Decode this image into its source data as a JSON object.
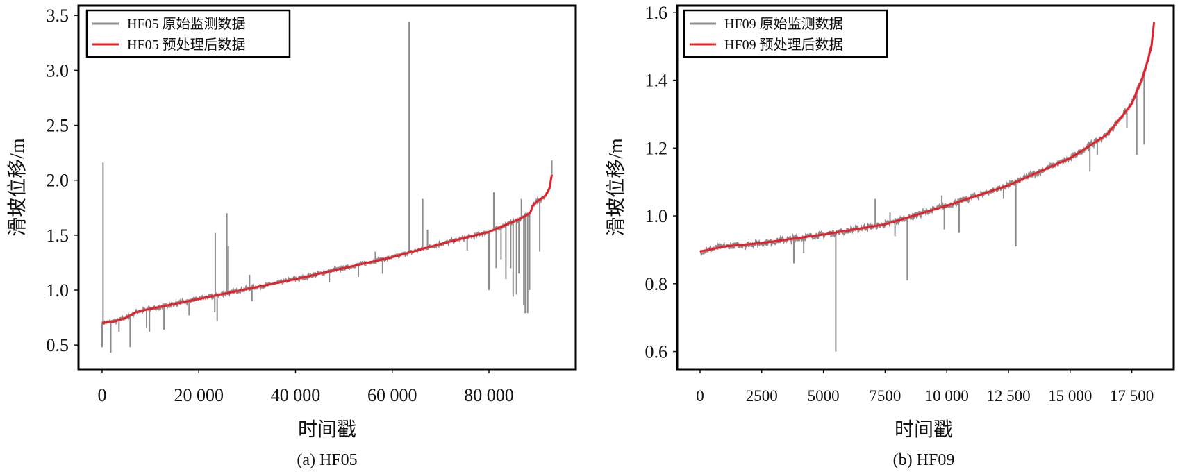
{
  "chart_data": [
    {
      "type": "line",
      "caption": "(a) HF05",
      "xlabel": "时间戳",
      "ylabel": "滑坡位移/m",
      "xlim": [
        -4880,
        97950
      ],
      "ylim": [
        0.28,
        3.59
      ],
      "xticks": [
        0,
        20000,
        40000,
        60000,
        80000
      ],
      "xtick_labels": [
        "0",
        "20 000",
        "40 000",
        "60 000",
        "80 000"
      ],
      "yticks": [
        0.5,
        1.0,
        1.5,
        2.0,
        2.5,
        3.0,
        3.5
      ],
      "ytick_labels": [
        "0.5",
        "1.0",
        "1.5",
        "2.0",
        "2.5",
        "3.0",
        "3.5"
      ],
      "grid": false,
      "legend_position": "top-left",
      "series": [
        {
          "name": "HF05 原始监测数据",
          "color": "#8c8c8c",
          "noise": 0.018,
          "spikes": [
            [
              0,
              0.48
            ],
            [
              200,
              2.16
            ],
            [
              1800,
              0.43
            ],
            [
              3500,
              0.62
            ],
            [
              5800,
              0.48
            ],
            [
              9200,
              0.66
            ],
            [
              9800,
              0.62
            ],
            [
              12800,
              0.64
            ],
            [
              18000,
              0.77
            ],
            [
              23400,
              1.52
            ],
            [
              23300,
              0.8
            ],
            [
              23800,
              0.72
            ],
            [
              25800,
              1.7
            ],
            [
              26100,
              1.4
            ],
            [
              30500,
              1.14
            ],
            [
              31000,
              0.9
            ],
            [
              47000,
              1.07
            ],
            [
              53000,
              1.12
            ],
            [
              56500,
              1.35
            ],
            [
              58000,
              1.15
            ],
            [
              63500,
              3.44
            ],
            [
              66300,
              1.83
            ],
            [
              67300,
              1.55
            ],
            [
              75500,
              1.36
            ],
            [
              80000,
              1.0
            ],
            [
              81000,
              1.89
            ],
            [
              81500,
              1.2
            ],
            [
              82500,
              1.28
            ],
            [
              83500,
              1.1
            ],
            [
              84500,
              1.2
            ],
            [
              85000,
              0.94
            ],
            [
              85700,
              0.96
            ],
            [
              86200,
              1.15
            ],
            [
              86700,
              1.83
            ],
            [
              87200,
              0.86
            ],
            [
              87500,
              0.79
            ],
            [
              88000,
              0.79
            ],
            [
              88400,
              1.0
            ],
            [
              90500,
              1.35
            ],
            [
              93000,
              2.18
            ]
          ]
        },
        {
          "name": "HF05 预处理后数据",
          "color": "#e8202a",
          "x": [
            0,
            3000,
            5000,
            7000,
            10000,
            20000,
            30000,
            40000,
            50000,
            60000,
            70000,
            80000,
            86000,
            88500,
            89200,
            90000,
            91500,
            92500,
            93000
          ],
          "y": [
            0.7,
            0.72,
            0.75,
            0.8,
            0.83,
            0.92,
            1.01,
            1.1,
            1.2,
            1.3,
            1.42,
            1.53,
            1.64,
            1.7,
            1.78,
            1.81,
            1.85,
            1.92,
            2.05
          ]
        }
      ]
    },
    {
      "type": "line",
      "caption": "(b) HF09",
      "xlabel": "时间戳",
      "ylabel": "滑坡位移/m",
      "xlim": [
        -929,
        19200
      ],
      "ylim": [
        0.548,
        1.62
      ],
      "xticks": [
        0,
        2500,
        5000,
        7500,
        10000,
        12500,
        15000,
        17500
      ],
      "xtick_labels": [
        "0",
        "2500",
        "5000",
        "7500",
        "10 000",
        "12 500",
        "15 000",
        "17 500"
      ],
      "yticks": [
        0.6,
        0.8,
        1.0,
        1.2,
        1.4,
        1.6
      ],
      "ytick_labels": [
        "0.6",
        "0.8",
        "1.0",
        "1.2",
        "1.4",
        "1.6"
      ],
      "grid": false,
      "legend_position": "top-left",
      "series": [
        {
          "name": "HF09 原始监测数据",
          "color": "#8c8c8c",
          "noise": 0.009,
          "spikes": [
            [
              3800,
              0.86
            ],
            [
              4200,
              0.89
            ],
            [
              5500,
              0.6
            ],
            [
              7100,
              1.05
            ],
            [
              7700,
              1.01
            ],
            [
              7900,
              0.94
            ],
            [
              8400,
              0.81
            ],
            [
              9800,
              1.06
            ],
            [
              9900,
              0.96
            ],
            [
              10500,
              0.95
            ],
            [
              12300,
              1.05
            ],
            [
              12800,
              0.91
            ],
            [
              15800,
              1.13
            ],
            [
              16100,
              1.18
            ],
            [
              17300,
              1.26
            ],
            [
              17700,
              1.18
            ],
            [
              18000,
              1.21
            ]
          ]
        },
        {
          "name": "HF09 预处理后数据",
          "color": "#e8202a",
          "x": [
            0,
            1000,
            2500,
            5000,
            7500,
            10000,
            12500,
            15000,
            16500,
            17500,
            18000,
            18300,
            18400
          ],
          "y": [
            0.895,
            0.91,
            0.92,
            0.945,
            0.975,
            1.03,
            1.09,
            1.17,
            1.24,
            1.33,
            1.42,
            1.5,
            1.57
          ]
        }
      ]
    }
  ]
}
